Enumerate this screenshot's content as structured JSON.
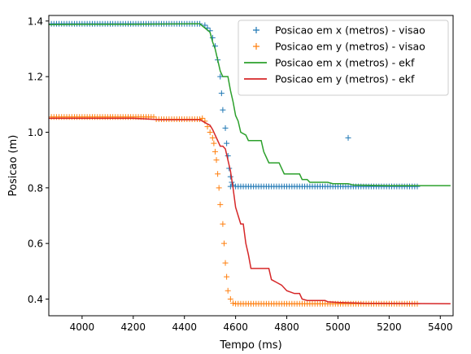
{
  "chart_data": {
    "type": "line",
    "xlabel": "Tempo (ms)",
    "ylabel": "Posicao (m)",
    "xlim": [
      3870,
      5450
    ],
    "ylim": [
      0.34,
      1.42
    ],
    "xticks": [
      4000,
      4200,
      4400,
      4600,
      4800,
      5000,
      5200,
      5400
    ],
    "yticks": [
      0.4,
      0.6,
      0.8,
      1.0,
      1.2,
      1.4
    ],
    "xtick_labels": [
      "4000",
      "4200",
      "4400",
      "4600",
      "4800",
      "5000",
      "5200",
      "5400"
    ],
    "ytick_labels": [
      "0.4",
      "0.6",
      "0.8",
      "1.0",
      "1.2",
      "1.4"
    ],
    "grid": false,
    "legend_position": "top-right",
    "series": [
      {
        "name": "Posicao em x (metros) - visao",
        "kind": "markers",
        "marker": "+",
        "color": "#1f77b4",
        "segments": [
          {
            "x_start": 3880,
            "x_end": 4450,
            "step": 10,
            "y": 1.39
          },
          {
            "x_start": 4580,
            "x_end": 5310,
            "step": 10,
            "y": 0.805
          }
        ],
        "points": [
          [
            4460,
            1.39
          ],
          [
            4480,
            1.385
          ],
          [
            4490,
            1.375
          ],
          [
            4500,
            1.365
          ],
          [
            4510,
            1.34
          ],
          [
            4520,
            1.31
          ],
          [
            4530,
            1.26
          ],
          [
            4540,
            1.2
          ],
          [
            4545,
            1.14
          ],
          [
            4550,
            1.08
          ],
          [
            4560,
            1.015
          ],
          [
            4565,
            0.96
          ],
          [
            4570,
            0.915
          ],
          [
            4575,
            0.87
          ],
          [
            4580,
            0.84
          ],
          [
            4585,
            0.82
          ],
          [
            4590,
            0.81
          ],
          [
            5040,
            0.98
          ]
        ]
      },
      {
        "name": "Posicao em y (metros) - visao",
        "kind": "markers",
        "marker": "+",
        "color": "#ff7f0e",
        "segments": [
          {
            "x_start": 3880,
            "x_end": 4280,
            "step": 10,
            "y": 1.055
          },
          {
            "x_start": 4290,
            "x_end": 4460,
            "step": 10,
            "y": 1.047
          },
          {
            "x_start": 4600,
            "x_end": 5310,
            "step": 10,
            "y": 0.383
          }
        ],
        "points": [
          [
            4470,
            1.05
          ],
          [
            4480,
            1.04
          ],
          [
            4490,
            1.02
          ],
          [
            4500,
            1.0
          ],
          [
            4510,
            0.98
          ],
          [
            4515,
            0.96
          ],
          [
            4520,
            0.93
          ],
          [
            4525,
            0.9
          ],
          [
            4530,
            0.85
          ],
          [
            4535,
            0.8
          ],
          [
            4540,
            0.74
          ],
          [
            4550,
            0.67
          ],
          [
            4555,
            0.6
          ],
          [
            4560,
            0.53
          ],
          [
            4565,
            0.48
          ],
          [
            4570,
            0.43
          ],
          [
            4580,
            0.4
          ],
          [
            4590,
            0.385
          ]
        ]
      },
      {
        "name": "Posicao em x (metros) - ekf",
        "kind": "line",
        "color": "#2ca02c",
        "points": [
          [
            3870,
            1.387
          ],
          [
            4000,
            1.388
          ],
          [
            4200,
            1.388
          ],
          [
            4440,
            1.39
          ],
          [
            4460,
            1.39
          ],
          [
            4480,
            1.375
          ],
          [
            4500,
            1.36
          ],
          [
            4510,
            1.325
          ],
          [
            4520,
            1.3
          ],
          [
            4530,
            1.26
          ],
          [
            4540,
            1.22
          ],
          [
            4550,
            1.2
          ],
          [
            4570,
            1.2
          ],
          [
            4580,
            1.15
          ],
          [
            4590,
            1.11
          ],
          [
            4600,
            1.06
          ],
          [
            4610,
            1.04
          ],
          [
            4620,
            1.0
          ],
          [
            4640,
            0.99
          ],
          [
            4650,
            0.97
          ],
          [
            4700,
            0.97
          ],
          [
            4710,
            0.93
          ],
          [
            4720,
            0.91
          ],
          [
            4730,
            0.89
          ],
          [
            4770,
            0.89
          ],
          [
            4780,
            0.87
          ],
          [
            4790,
            0.85
          ],
          [
            4850,
            0.85
          ],
          [
            4860,
            0.83
          ],
          [
            4880,
            0.83
          ],
          [
            4890,
            0.82
          ],
          [
            4960,
            0.82
          ],
          [
            4980,
            0.815
          ],
          [
            5040,
            0.815
          ],
          [
            5060,
            0.81
          ],
          [
            5200,
            0.808
          ],
          [
            5440,
            0.808
          ]
        ]
      },
      {
        "name": "Posicao em y (metros) - ekf",
        "kind": "line",
        "color": "#d62728",
        "points": [
          [
            3870,
            1.05
          ],
          [
            4200,
            1.05
          ],
          [
            4250,
            1.048
          ],
          [
            4300,
            1.045
          ],
          [
            4440,
            1.045
          ],
          [
            4460,
            1.045
          ],
          [
            4480,
            1.035
          ],
          [
            4500,
            1.025
          ],
          [
            4510,
            1.01
          ],
          [
            4520,
            0.99
          ],
          [
            4530,
            0.97
          ],
          [
            4540,
            0.95
          ],
          [
            4550,
            0.95
          ],
          [
            4560,
            0.94
          ],
          [
            4570,
            0.9
          ],
          [
            4580,
            0.86
          ],
          [
            4590,
            0.8
          ],
          [
            4600,
            0.73
          ],
          [
            4610,
            0.7
          ],
          [
            4620,
            0.67
          ],
          [
            4630,
            0.67
          ],
          [
            4640,
            0.6
          ],
          [
            4650,
            0.56
          ],
          [
            4660,
            0.51
          ],
          [
            4730,
            0.51
          ],
          [
            4740,
            0.47
          ],
          [
            4760,
            0.46
          ],
          [
            4780,
            0.45
          ],
          [
            4800,
            0.43
          ],
          [
            4830,
            0.42
          ],
          [
            4850,
            0.42
          ],
          [
            4860,
            0.4
          ],
          [
            4880,
            0.395
          ],
          [
            4950,
            0.395
          ],
          [
            4960,
            0.39
          ],
          [
            5000,
            0.388
          ],
          [
            5100,
            0.385
          ],
          [
            5440,
            0.383
          ]
        ]
      }
    ]
  }
}
